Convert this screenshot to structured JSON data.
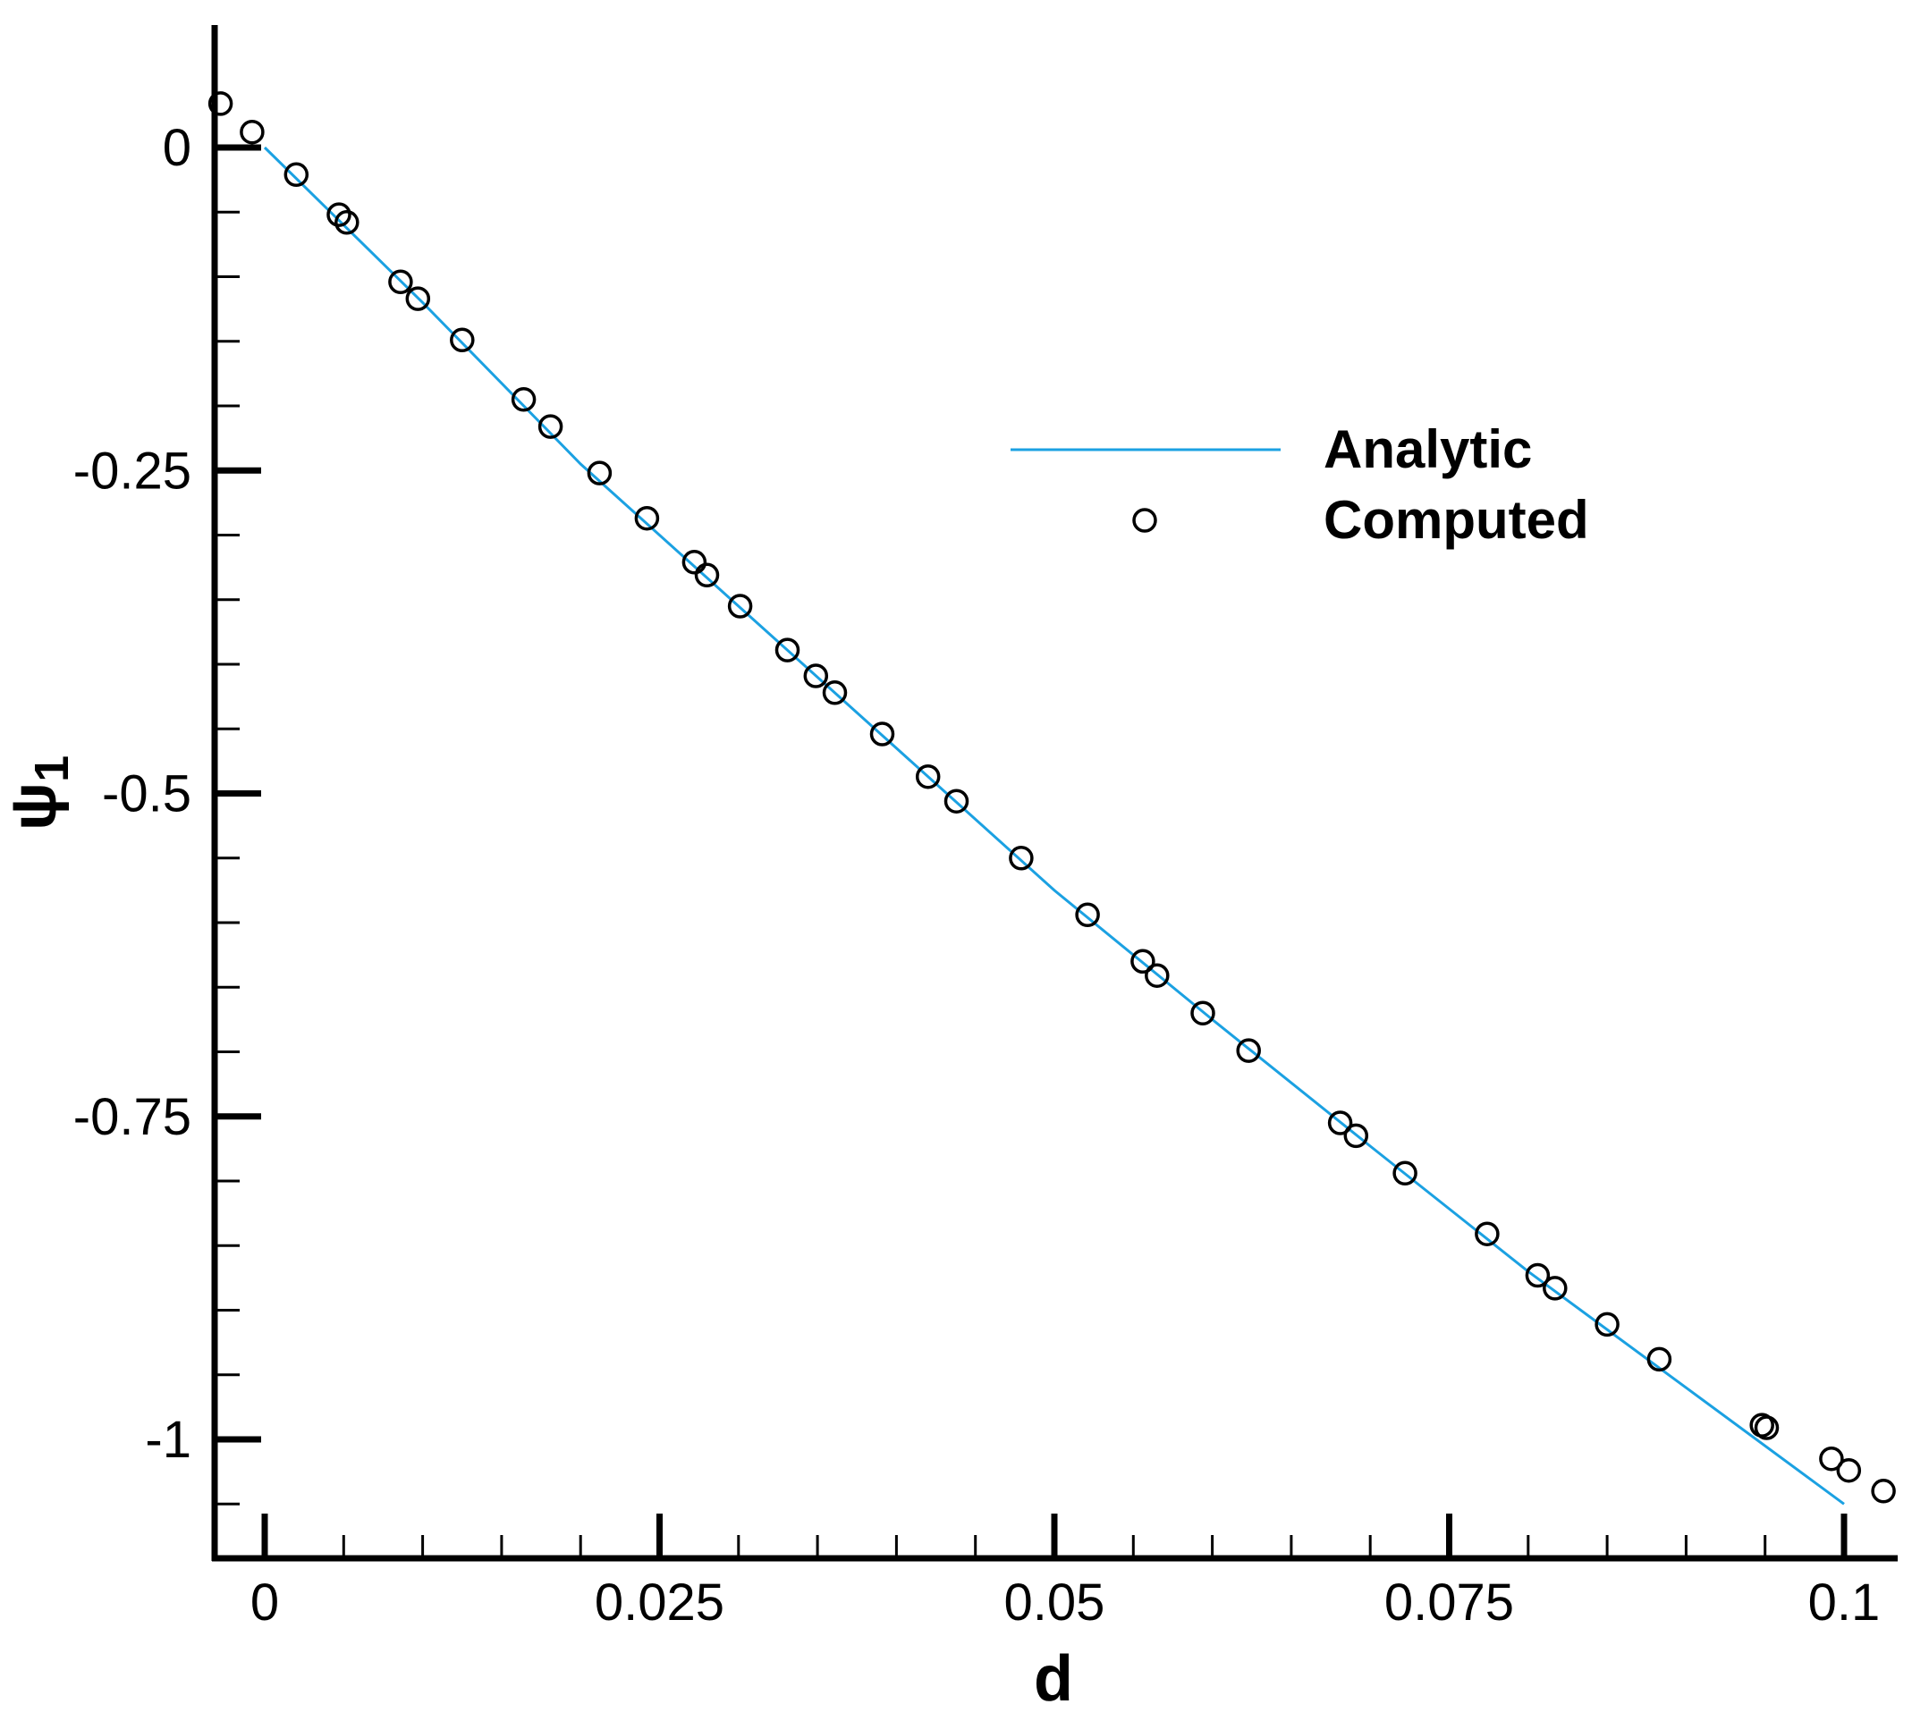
{
  "chart_data": {
    "type": "line",
    "title": "",
    "xlabel": "d",
    "ylabel_main": "ψ",
    "ylabel_sub": "1",
    "xlim": [
      -0.003,
      0.103
    ],
    "ylim": [
      -1.085,
      0.09
    ],
    "x_major_ticks": [
      {
        "v": 0,
        "label": "0"
      },
      {
        "v": 0.025,
        "label": "0.025"
      },
      {
        "v": 0.05,
        "label": "0.05"
      },
      {
        "v": 0.075,
        "label": "0.075"
      },
      {
        "v": 0.1,
        "label": "0.1"
      }
    ],
    "x_minor_ticks": [
      0.005,
      0.01,
      0.015,
      0.02,
      0.03,
      0.035,
      0.04,
      0.045,
      0.055,
      0.06,
      0.065,
      0.07,
      0.08,
      0.085,
      0.09,
      0.095
    ],
    "y_major_ticks": [
      {
        "v": 0,
        "label": "0"
      },
      {
        "v": -0.25,
        "label": "-0.25"
      },
      {
        "v": -0.5,
        "label": "-0.5"
      },
      {
        "v": -0.75,
        "label": "-0.75"
      },
      {
        "v": -1,
        "label": "-1"
      }
    ],
    "y_minor_ticks": [
      -0.05,
      -0.1,
      -0.15,
      -0.2,
      -0.3,
      -0.35,
      -0.4,
      -0.45,
      -0.55,
      -0.6,
      -0.65,
      -0.7,
      -0.8,
      -0.85,
      -0.9,
      -0.95,
      -1.05
    ],
    "legend_position": "upper-right",
    "series": [
      {
        "name": "Analytic",
        "kind": "line",
        "color": "#1ba1e2",
        "x": [
          0,
          0.01,
          0.02,
          0.03,
          0.04,
          0.05,
          0.06,
          0.07,
          0.08,
          0.09,
          0.1
        ],
        "y": [
          0,
          -0.12,
          -0.245,
          -0.355,
          -0.465,
          -0.575,
          -0.675,
          -0.773,
          -0.87,
          -0.96,
          -1.05
        ]
      },
      {
        "name": "Computed",
        "kind": "scatter",
        "color": "#000000",
        "x": [
          -0.0028,
          -0.0008,
          0.002,
          0.0047,
          0.0052,
          0.0086,
          0.0097,
          0.0125,
          0.0164,
          0.0181,
          0.0212,
          0.0242,
          0.0272,
          0.028,
          0.0301,
          0.0331,
          0.0349,
          0.0361,
          0.0391,
          0.042,
          0.0438,
          0.0479,
          0.0521,
          0.0556,
          0.0565,
          0.0594,
          0.0623,
          0.0681,
          0.0691,
          0.0722,
          0.0774,
          0.0806,
          0.0817,
          0.085,
          0.0883,
          0.0948,
          0.0951,
          0.0992,
          0.1003,
          0.1025
        ],
        "y": [
          0.034,
          0.012,
          -0.021,
          -0.052,
          -0.058,
          -0.104,
          -0.117,
          -0.149,
          -0.195,
          -0.216,
          -0.252,
          -0.287,
          -0.321,
          -0.331,
          -0.355,
          -0.389,
          -0.409,
          -0.422,
          -0.454,
          -0.487,
          -0.506,
          -0.55,
          -0.594,
          -0.63,
          -0.641,
          -0.67,
          -0.699,
          -0.755,
          -0.765,
          -0.794,
          -0.841,
          -0.873,
          -0.883,
          -0.911,
          -0.938,
          -0.989,
          -0.991,
          -1.015,
          -1.024,
          -1.04
        ]
      }
    ]
  }
}
